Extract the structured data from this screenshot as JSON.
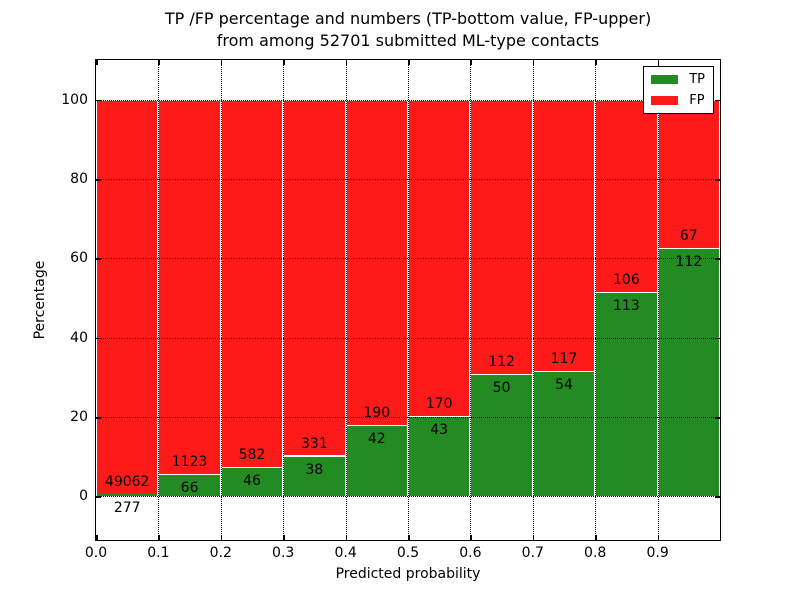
{
  "chart_data": {
    "type": "bar",
    "stacked": true,
    "title_line1": "TP /FP percentage and numbers (TP-bottom value, FP-upper)",
    "title_line2": "from among 52701 submitted ML-type contacts",
    "total_submitted_contacts": 52701,
    "xlabel": "Predicted probability",
    "ylabel": "Percentage",
    "bin_width": 0.1,
    "bin_starts": [
      0.0,
      0.1,
      0.2,
      0.3,
      0.4,
      0.5,
      0.6,
      0.7,
      0.8,
      0.9
    ],
    "xtick_labels": [
      "0.0",
      "0.1",
      "0.2",
      "0.3",
      "0.4",
      "0.5",
      "0.6",
      "0.7",
      "0.8",
      "0.9"
    ],
    "ytick_values": [
      0,
      20,
      40,
      60,
      80,
      100
    ],
    "xlim": [
      0.0,
      1.0
    ],
    "ylim": [
      -11,
      110
    ],
    "grid": {
      "style": "dotted",
      "color": "#000000",
      "on_top": true
    },
    "series": [
      {
        "name": "TP",
        "color": "#228B22",
        "counts": [
          277,
          66,
          46,
          38,
          42,
          43,
          50,
          54,
          113,
          112
        ]
      },
      {
        "name": "FP",
        "color": "#FF1A1A",
        "counts": [
          49062,
          1123,
          582,
          331,
          190,
          170,
          112,
          117,
          106,
          67
        ]
      }
    ],
    "tp_percent": [
      0.56,
      5.55,
      7.32,
      10.3,
      18.1,
      20.19,
      30.86,
      31.58,
      51.6,
      62.57
    ],
    "fp_percent": [
      99.44,
      94.45,
      92.68,
      89.7,
      81.9,
      79.81,
      69.14,
      68.42,
      48.4,
      37.43
    ],
    "bar_edge_color": "#ffffff",
    "legend": {
      "position": "upper right",
      "entries": [
        {
          "label": "TP",
          "color": "#228B22"
        },
        {
          "label": "FP",
          "color": "#FF1A1A"
        }
      ]
    }
  }
}
